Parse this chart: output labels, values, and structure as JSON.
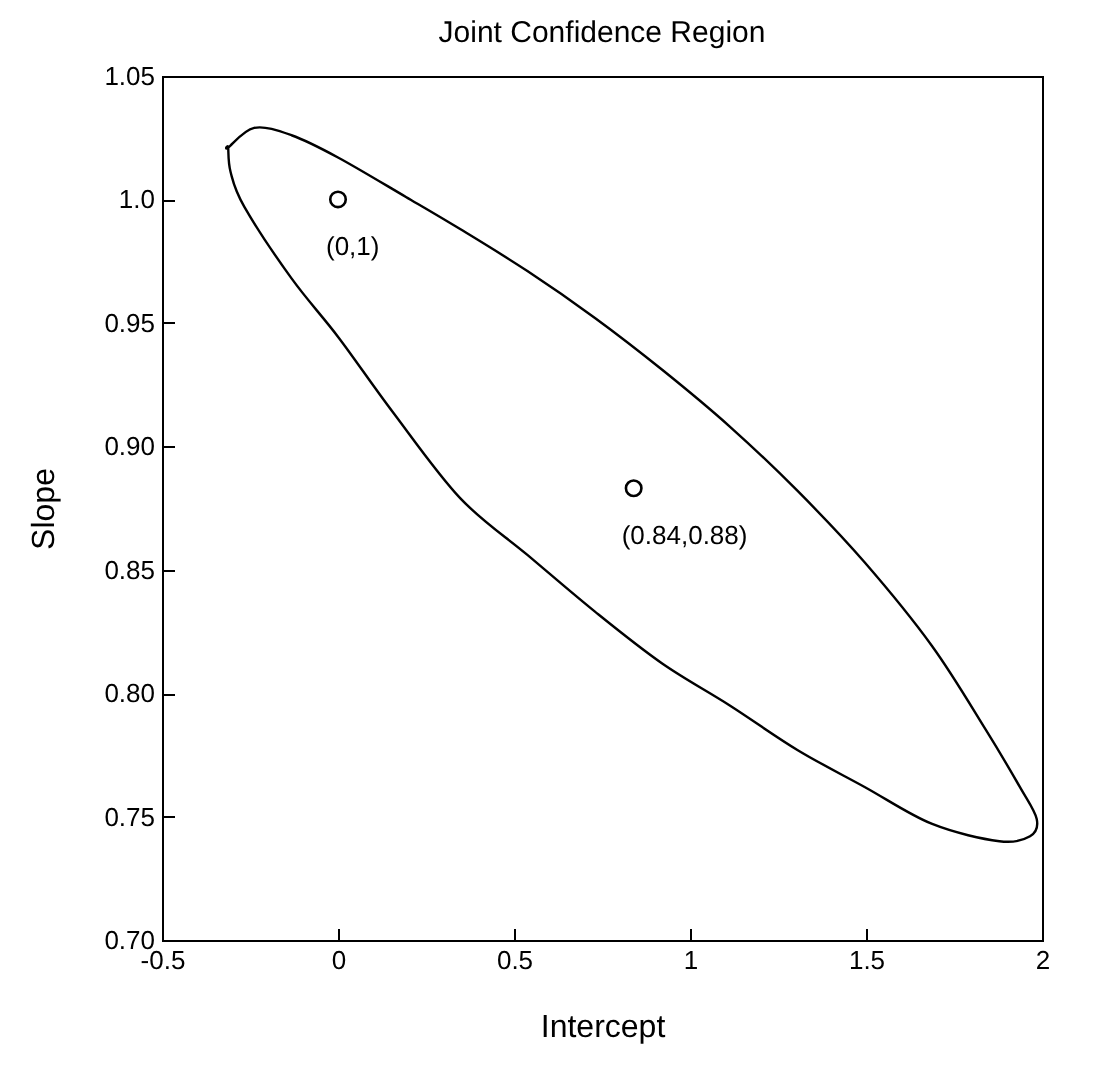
{
  "chart_data": {
    "type": "scatter",
    "title": "Joint Confidence Region",
    "xlabel": "Intercept",
    "ylabel": "Slope",
    "xlim": [
      -0.5,
      2
    ],
    "ylim": [
      0.7,
      1.05
    ],
    "xticks": [
      -0.5,
      0,
      0.5,
      1,
      1.5,
      2
    ],
    "yticks": [
      {
        "value": 0.7,
        "label": "0.70"
      },
      0.75,
      {
        "value": 0.8,
        "label": "0.80"
      },
      0.85,
      {
        "value": 0.9,
        "label": "0.90"
      },
      0.95,
      {
        "value": 1.0,
        "label": "1.0"
      },
      1.05
    ],
    "marker": "circle",
    "series": [
      {
        "color": "#000000",
        "x": [
          0,
          0.84
        ],
        "values": [
          1,
          0.883
        ]
      }
    ],
    "annotations": [
      {
        "text": "(0,1)",
        "x": 0,
        "y": 1
      },
      {
        "text": "(0.84,0.88)",
        "x": 0.84,
        "y": 0.883
      }
    ]
  }
}
